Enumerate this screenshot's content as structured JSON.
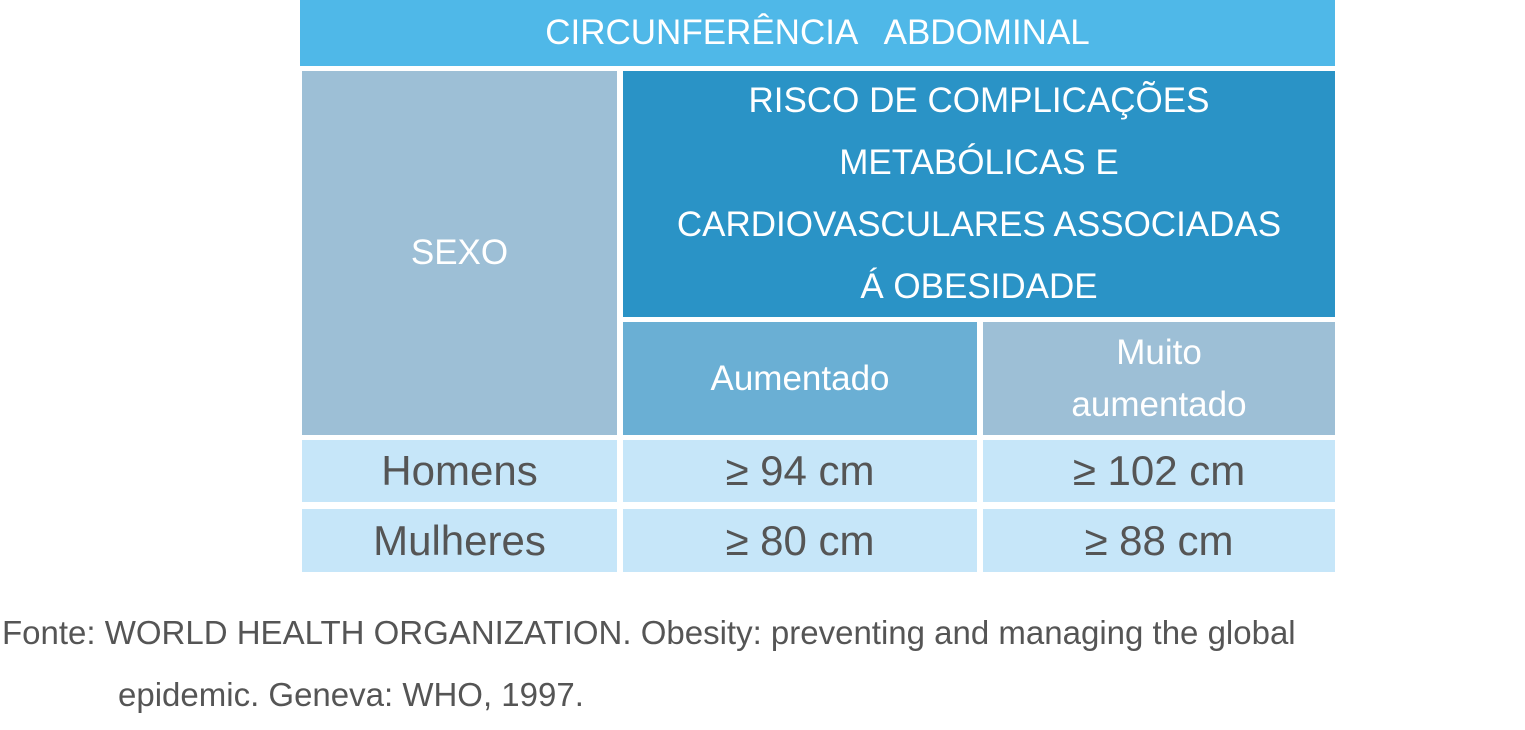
{
  "table": {
    "title": "CIRCUNFERÊNCIA   ABDOMINAL",
    "header": {
      "sexo": "SEXO",
      "risk": [
        "RISCO DE COMPLICAÇÕES",
        "METABÓLICAS E",
        "CARDIOVASCULARES ASSOCIADAS",
        "Á OBESIDADE"
      ],
      "levels": [
        [
          "Aumentado"
        ],
        [
          "Muito",
          "aumentado"
        ]
      ]
    },
    "rows": [
      [
        "Homens",
        "≥ 94 cm",
        "≥ 102 cm"
      ],
      [
        "Mulheres",
        "≥ 80 cm",
        "≥ 88 cm"
      ]
    ]
  },
  "source": [
    "Fonte: WORLD HEALTH ORGANIZATION. Obesity: preventing and managing the global",
    "epidemic. Geneva: WHO, 1997."
  ]
}
